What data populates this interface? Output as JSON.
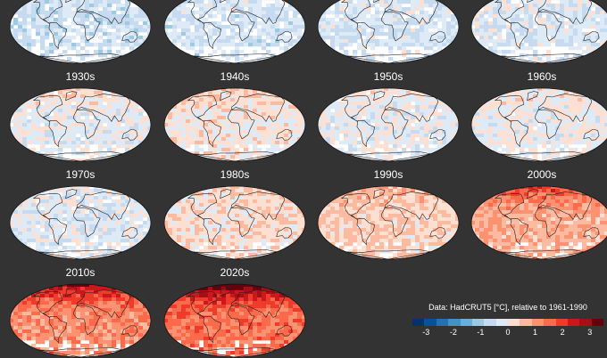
{
  "panels": [
    {
      "id": "p1",
      "title": "",
      "anomaly": -0.55,
      "warm_north": 0.1
    },
    {
      "id": "p2",
      "title": "",
      "anomaly": -0.45,
      "warm_north": 0.2
    },
    {
      "id": "p3",
      "title": "",
      "anomaly": -0.4,
      "warm_north": 0.3
    },
    {
      "id": "p4",
      "title": "",
      "anomaly": -0.35,
      "warm_north": 0.3
    },
    {
      "id": "p1930",
      "title": "1930s",
      "anomaly": -0.15,
      "warm_north": 0.6
    },
    {
      "id": "p1940",
      "title": "1940s",
      "anomaly": 0.1,
      "warm_north": 0.4
    },
    {
      "id": "p1950",
      "title": "1950s",
      "anomaly": -0.15,
      "warm_north": 0.3
    },
    {
      "id": "p1960",
      "title": "1960s",
      "anomaly": -0.05,
      "warm_north": 0.2
    },
    {
      "id": "p1970",
      "title": "1970s",
      "anomaly": -0.25,
      "warm_north": 0.1
    },
    {
      "id": "p1980",
      "title": "1980s",
      "anomaly": 0.25,
      "warm_north": 0.2
    },
    {
      "id": "p1990",
      "title": "1990s",
      "anomaly": 0.4,
      "warm_north": 0.4
    },
    {
      "id": "p2000",
      "title": "2000s",
      "anomaly": 0.75,
      "warm_north": 1.4
    },
    {
      "id": "p2010",
      "title": "2010s",
      "anomaly": 1.1,
      "warm_north": 1.9
    },
    {
      "id": "p2020",
      "title": "2020s",
      "anomaly": 1.4,
      "warm_north": 2.3
    }
  ],
  "legend": {
    "title": "Data: HadCRUT5 [°C], relative to 1961-1990",
    "min": -3.5,
    "max": 3.5,
    "ticks": [
      "-3",
      "-2",
      "-1",
      "0",
      "1",
      "2",
      "3"
    ],
    "tick_values": [
      -3,
      -2,
      -1,
      0,
      1,
      2,
      3
    ],
    "colors": [
      "#08306b",
      "#08519c",
      "#2171b5",
      "#4292c6",
      "#6baed6",
      "#9ecae1",
      "#c6dbef",
      "#deebf7",
      "#fee0d2",
      "#fcbba1",
      "#fc9272",
      "#fb6a4a",
      "#ef3b2c",
      "#cb181d",
      "#a50f15",
      "#67000d"
    ]
  },
  "colors": {
    "background": "#333333",
    "missing_data": "#ffffff",
    "coastline": "#222222"
  }
}
